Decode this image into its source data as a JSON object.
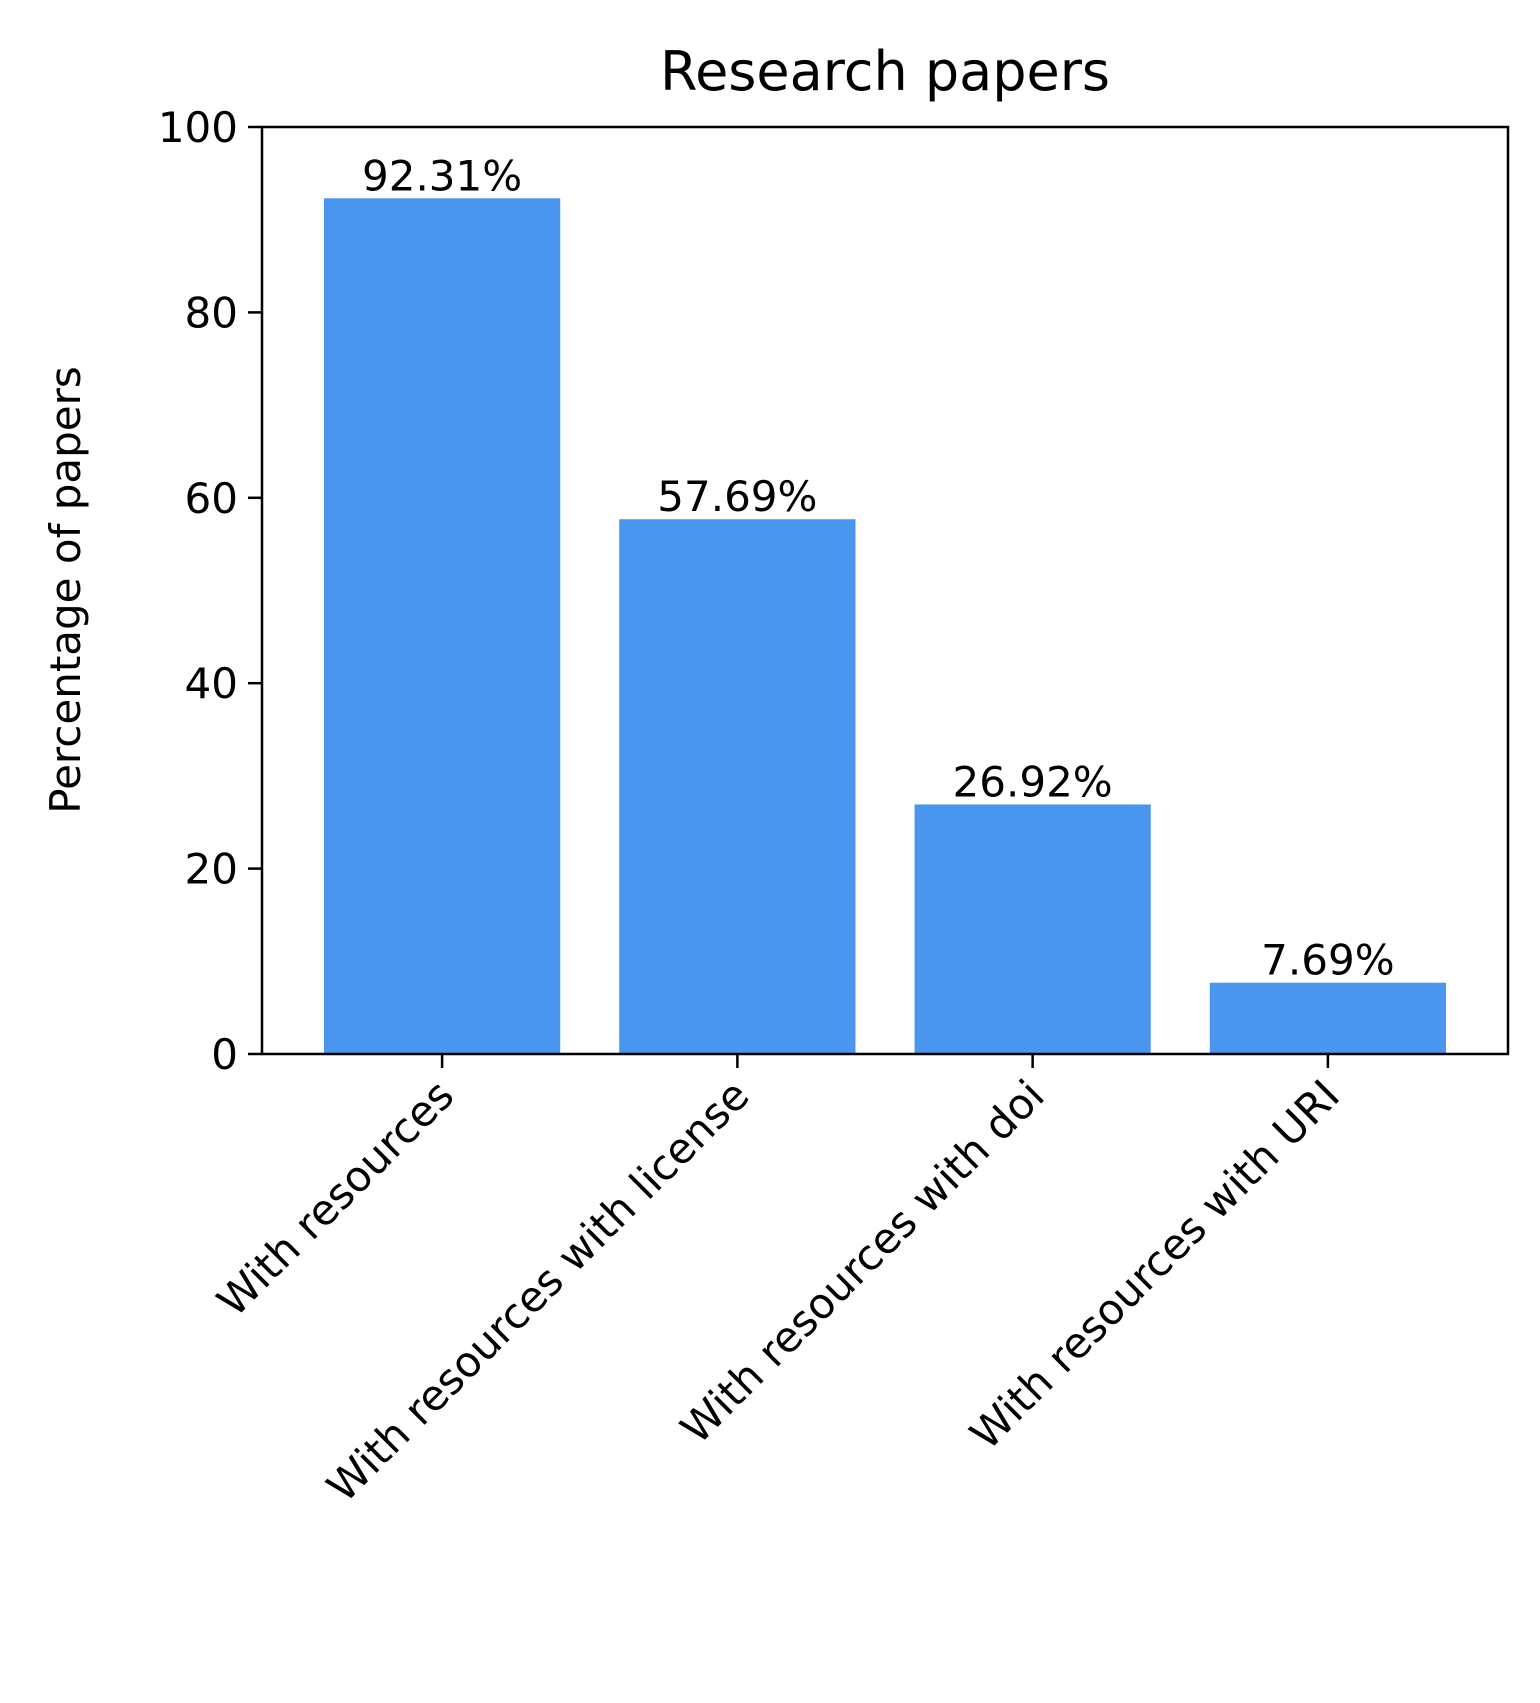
{
  "chart_data": {
    "type": "bar",
    "title": "Research papers",
    "xlabel": "",
    "ylabel": "Percentage of papers",
    "ylim": [
      0,
      100
    ],
    "yticks": [
      0,
      20,
      40,
      60,
      80,
      100
    ],
    "categories": [
      "With resources",
      "With resources with license",
      "With resources with doi",
      "With resources with URI"
    ],
    "values": [
      92.31,
      57.69,
      26.92,
      7.69
    ],
    "value_labels": [
      "92.31%",
      "57.69%",
      "26.92%",
      "7.69%"
    ],
    "bar_color": "#4a95ee",
    "grid": false,
    "legend": "none"
  }
}
